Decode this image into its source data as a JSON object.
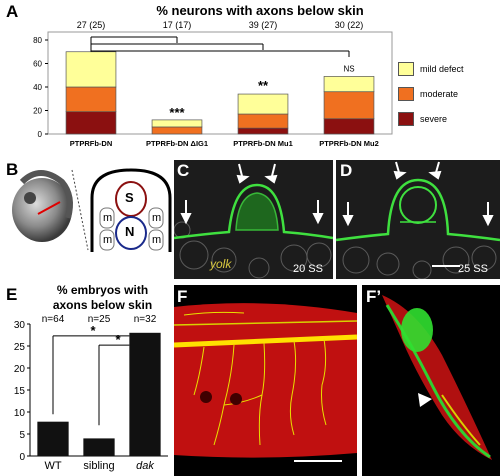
{
  "panelA": {
    "letter": "A",
    "title": "% neurons with axons below skin",
    "counts": [
      "27 (25)",
      "17 (17)",
      "39 (27)",
      "30 (22)"
    ],
    "significance": [
      "***",
      "**",
      "NS"
    ],
    "legend": [
      {
        "label": "mild defect",
        "color": "#ffff99"
      },
      {
        "label": "moderate",
        "color": "#f07020"
      },
      {
        "label": "severe",
        "color": "#8b1010"
      }
    ],
    "chart_data": {
      "type": "bar",
      "categories": [
        "PTPRFb-DN",
        "PTPRFb-DN ΔIG1",
        "PTPRFb-DN Mu1",
        "PTPRFb-DN Mu2"
      ],
      "series": [
        {
          "name": "severe",
          "values": [
            19,
            0,
            5,
            13
          ]
        },
        {
          "name": "moderate",
          "values": [
            21,
            6,
            12,
            23
          ]
        },
        {
          "name": "mild defect",
          "values": [
            30,
            6,
            17,
            13
          ]
        }
      ],
      "ylim": [
        0,
        80
      ],
      "yticks": [
        0,
        20,
        40,
        60,
        80
      ]
    }
  },
  "panelB": {
    "letter": "B",
    "labels": {
      "s": "S",
      "n": "N",
      "m": "m"
    }
  },
  "panelC": {
    "letter": "C",
    "yolk": "yolk",
    "stage": "20 SS"
  },
  "panelD": {
    "letter": "D",
    "stage": "25 SS"
  },
  "panelE": {
    "letter": "E",
    "title_line1": "% embryos with",
    "title_line2": "axons below skin",
    "ns": [
      "n=64",
      "n=25",
      "n=32"
    ],
    "stars": [
      "*",
      "*"
    ],
    "chart_data": {
      "type": "bar",
      "categories": [
        "WT",
        "sibling",
        "dak"
      ],
      "values": [
        7.8,
        4,
        28
      ],
      "ylim": [
        0,
        30
      ],
      "yticks": [
        0,
        5,
        10,
        15,
        20,
        25,
        30
      ]
    }
  },
  "panelF": {
    "letter": "F"
  },
  "panelF2": {
    "letter": "F’"
  }
}
